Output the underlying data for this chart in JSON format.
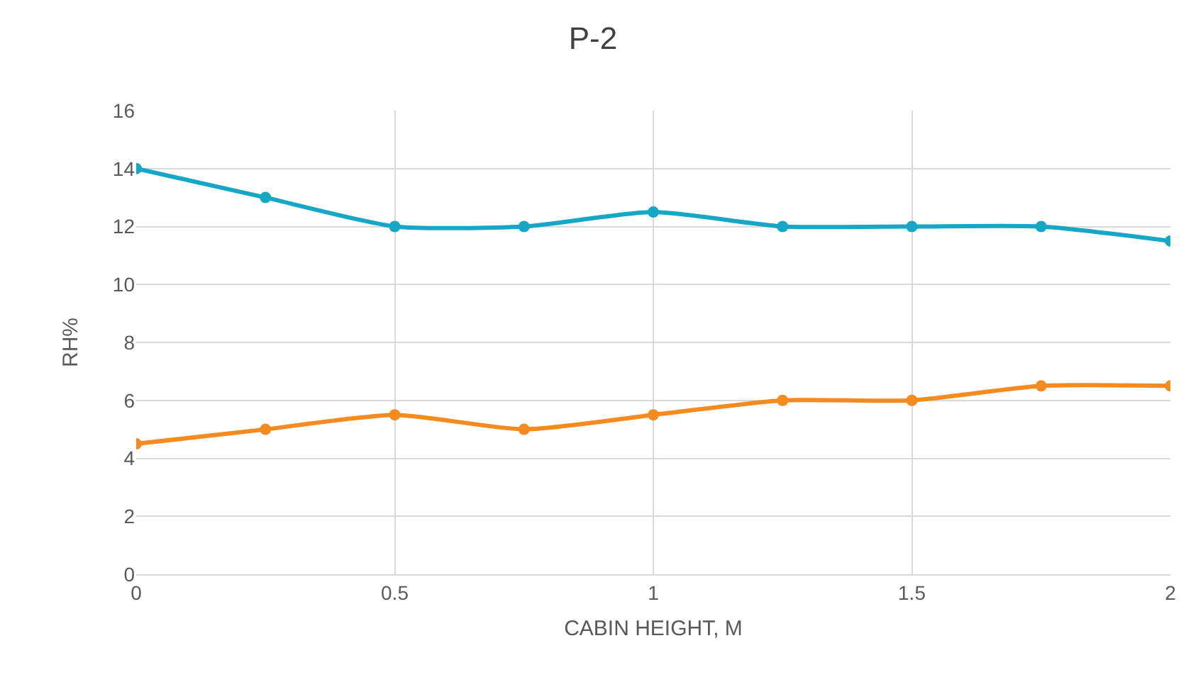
{
  "chart_data": {
    "type": "line",
    "title": "P-2",
    "xlabel": "CABIN HEIGHT, M",
    "ylabel": "RH%",
    "x": [
      0,
      0.25,
      0.5,
      0.75,
      1,
      1.25,
      1.5,
      1.75,
      2
    ],
    "series": [
      {
        "color": "#17a7c6",
        "values": [
          14,
          13,
          12,
          12,
          12.5,
          12,
          12,
          12,
          11.5
        ]
      },
      {
        "color": "#f58a1f",
        "values": [
          4.5,
          5,
          5.5,
          5,
          5.5,
          6,
          6,
          6.5,
          6.5
        ]
      }
    ],
    "xlim": [
      0,
      2
    ],
    "xticks": [
      0,
      0.5,
      1,
      1.5,
      2
    ],
    "ylim": [
      0,
      16
    ],
    "yticks": [
      0,
      2,
      4,
      6,
      8,
      10,
      12,
      14,
      16
    ],
    "grid": true,
    "marker": "circle",
    "line_style": "solid"
  }
}
